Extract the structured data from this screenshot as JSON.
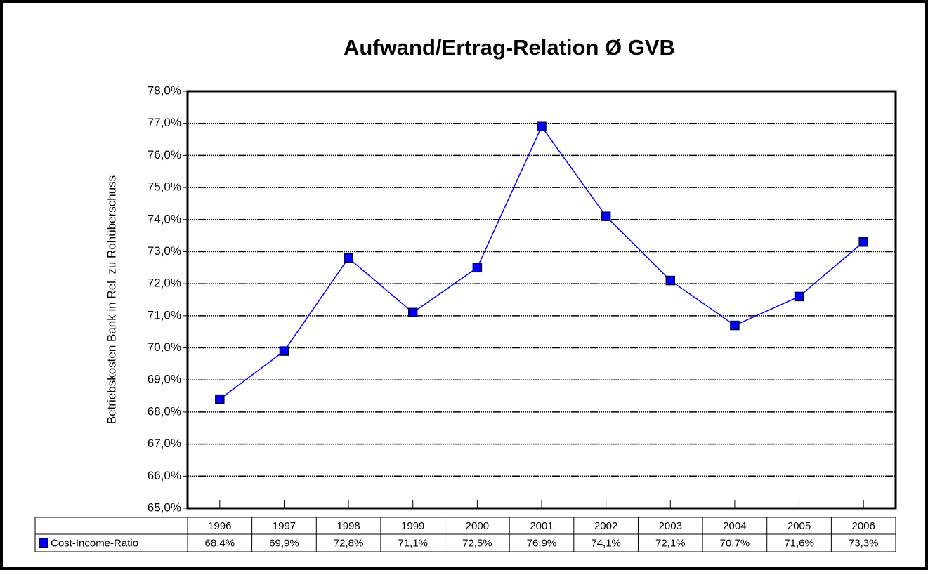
{
  "chart_data": {
    "type": "line",
    "title": "Aufwand/Ertrag-Relation Ø GVB",
    "y_label": "Betriebskosten Bank in Rel. zu Rohüberschuss",
    "categories": [
      "1996",
      "1997",
      "1998",
      "1999",
      "2000",
      "2001",
      "2002",
      "2003",
      "2004",
      "2005",
      "2006"
    ],
    "series": [
      {
        "name": "Cost-Income-Ratio",
        "color": "#0000ff",
        "values": [
          68.4,
          69.9,
          72.8,
          71.1,
          72.5,
          76.9,
          74.1,
          72.1,
          70.7,
          71.6,
          73.3
        ],
        "value_labels": [
          "68,4%",
          "69,9%",
          "72,8%",
          "71,1%",
          "72,5%",
          "76,9%",
          "74,1%",
          "72,1%",
          "70,7%",
          "71,6%",
          "73,3%"
        ]
      }
    ],
    "ylim": [
      65,
      78
    ],
    "yticks": [
      {
        "value": 65,
        "label": "65,0%"
      },
      {
        "value": 66,
        "label": "66,0%"
      },
      {
        "value": 67,
        "label": "67,0%"
      },
      {
        "value": 68,
        "label": "68,0%"
      },
      {
        "value": 69,
        "label": "69,0%"
      },
      {
        "value": 70,
        "label": "70,0%"
      },
      {
        "value": 71,
        "label": "71,0%"
      },
      {
        "value": 72,
        "label": "72,0%"
      },
      {
        "value": 73,
        "label": "73,0%"
      },
      {
        "value": 74,
        "label": "74,0%"
      },
      {
        "value": 75,
        "label": "75,0%"
      },
      {
        "value": 76,
        "label": "76,0%"
      },
      {
        "value": 77,
        "label": "77,0%"
      },
      {
        "value": 78,
        "label": "78,0%"
      }
    ],
    "grid": true
  }
}
